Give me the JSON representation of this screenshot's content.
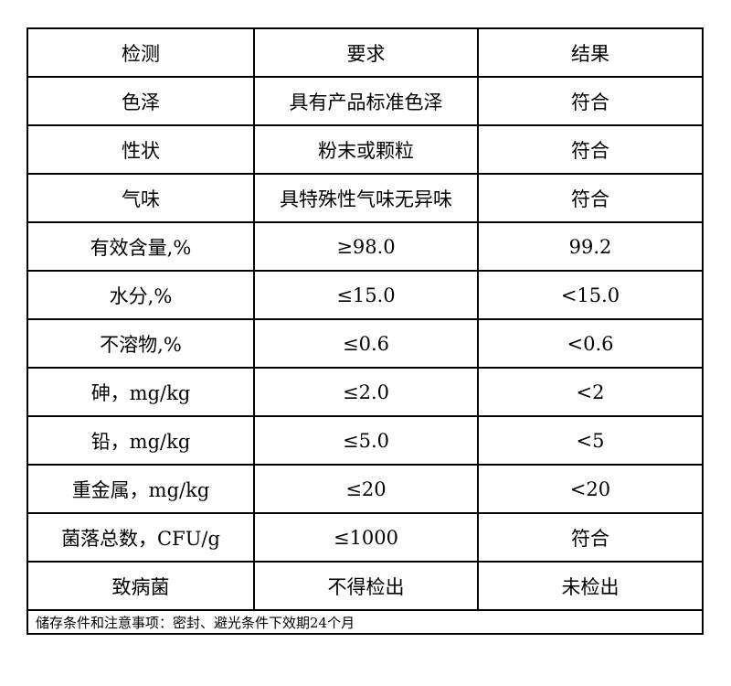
{
  "header": {
    "item": "检测",
    "requirement": "要求",
    "result": "结果"
  },
  "rows": [
    {
      "item": "色泽",
      "requirement": "具有产品标准色泽",
      "result": "符合"
    },
    {
      "item": "性状",
      "requirement": "粉末或颗粒",
      "result": "符合"
    },
    {
      "item": "气味",
      "requirement": "具特殊性气味无异味",
      "result": "符合"
    },
    {
      "item": "有效含量,%",
      "requirement": "≥98.0",
      "result": "99.2"
    },
    {
      "item": "水分,%",
      "requirement": "≤15.0",
      "result": "<15.0"
    },
    {
      "item": "不溶物,%",
      "requirement": "≤0.6",
      "result": "<0.6"
    },
    {
      "item": "砷，mg/kg",
      "requirement": "≤2.0",
      "result": "<2"
    },
    {
      "item": "铅，mg/kg",
      "requirement": "≤5.0",
      "result": "<5"
    },
    {
      "item": "重金属，mg/kg",
      "requirement": "≤20",
      "result": "<20"
    },
    {
      "item": "菌落总数，CFU/g",
      "requirement": "≤1000",
      "result": "符合"
    },
    {
      "item": "致病菌",
      "requirement": "不得检出",
      "result": "未检出"
    }
  ],
  "footer": "储存条件和注意事项：密封、避光条件下效期24个月"
}
